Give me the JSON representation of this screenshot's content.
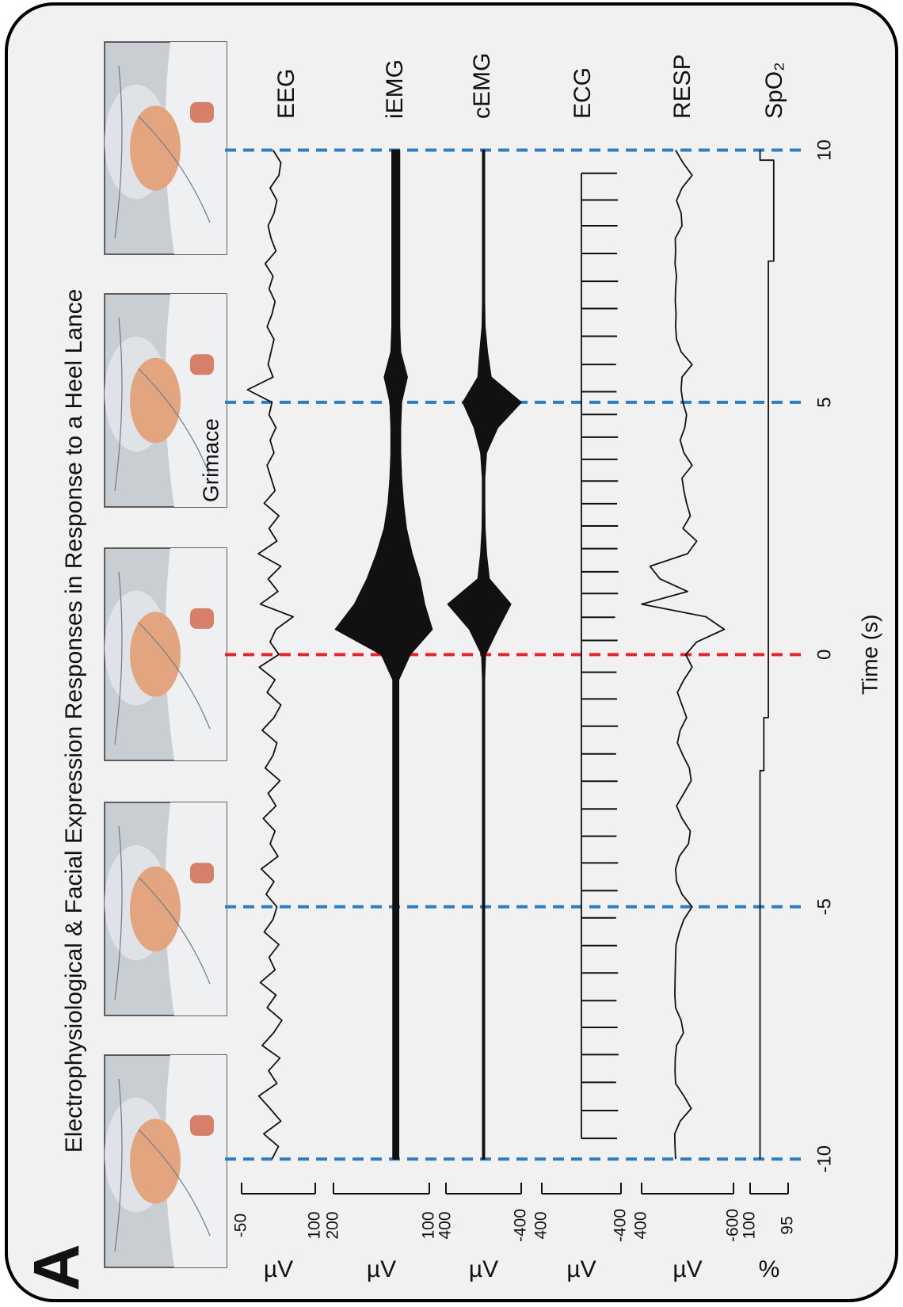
{
  "title": "Electrophysiological & Facial Expression Responses in Response to a Heel Lance",
  "panel_label": "A",
  "annotation": "Grimace",
  "time_axis": {
    "label": "Time (s)",
    "xlim": [
      -10,
      10
    ],
    "xticks": [
      -10,
      -5,
      0,
      5,
      10
    ],
    "tick_line_colors": [
      "#2f7dc1",
      "#2f7dc1",
      "#e3262c",
      "#2f7dc1",
      "#2f7dc1"
    ]
  },
  "chart_data": [
    {
      "type": "line",
      "name": "EEG",
      "unit": "µV",
      "color": "#111111",
      "ylim": [
        -50,
        100
      ],
      "yticks": [
        -50,
        100
      ],
      "x": [
        -10,
        -9.75,
        -9.5,
        -9.25,
        -9,
        -8.75,
        -8.5,
        -8.25,
        -8,
        -7.75,
        -7.5,
        -7.25,
        -7,
        -6.75,
        -6.5,
        -6.25,
        -6,
        -5.75,
        -5.5,
        -5.25,
        -5,
        -4.75,
        -4.5,
        -4.25,
        -4,
        -3.75,
        -3.5,
        -3.25,
        -3,
        -2.75,
        -2.5,
        -2.25,
        -2,
        -1.75,
        -1.5,
        -1.25,
        -1,
        -0.75,
        -0.5,
        -0.25,
        0,
        0.25,
        0.5,
        0.75,
        1,
        1.25,
        1.5,
        1.75,
        2,
        2.25,
        2.5,
        2.75,
        3,
        3.25,
        3.5,
        3.75,
        4,
        4.25,
        4.5,
        4.75,
        5,
        5.25,
        5.5,
        5.75,
        6,
        6.25,
        6.5,
        6.75,
        7,
        7.25,
        7.5,
        7.75,
        8,
        8.25,
        8.5,
        8.75,
        9,
        9.25,
        9.5,
        9.75,
        10
      ],
      "values": [
        12,
        25,
        -5,
        30,
        8,
        -15,
        22,
        5,
        28,
        -8,
        15,
        32,
        2,
        20,
        -12,
        18,
        6,
        26,
        -4,
        14,
        22,
        0,
        16,
        -10,
        24,
        8,
        18,
        -6,
        20,
        4,
        28,
        -2,
        14,
        22,
        -8,
        16,
        30,
        2,
        18,
        -14,
        26,
        8,
        20,
        55,
        -12,
        24,
        4,
        30,
        -16,
        22,
        6,
        26,
        -4,
        18,
        10,
        2,
        16,
        8,
        20,
        6,
        12,
        -38,
        14,
        4,
        10,
        16,
        2,
        12,
        18,
        6,
        14,
        -2,
        20,
        10,
        4,
        16,
        22,
        8,
        26,
        30,
        14
      ]
    },
    {
      "type": "band",
      "name": "iEMG",
      "unit": "µV",
      "color": "#111111",
      "ylim": [
        200,
        100
      ],
      "yticks": [
        200,
        100
      ],
      "x": [
        -10,
        -9.5,
        -9,
        -8.5,
        -8,
        -7.5,
        -7,
        -6.5,
        -6,
        -5.5,
        -5,
        -4.5,
        -4,
        -3.5,
        -3,
        -2.5,
        -2,
        -1.5,
        -1,
        -0.5,
        0,
        0.5,
        1,
        1.5,
        2,
        2.5,
        3,
        3.5,
        4,
        4.5,
        5,
        5.5,
        6,
        6.5,
        7,
        7.5,
        8,
        8.5,
        9,
        9.5,
        10
      ],
      "high": [
        138,
        138,
        138,
        138,
        138,
        138,
        138,
        138,
        138,
        138,
        138,
        138,
        138,
        138,
        138,
        138,
        138,
        138,
        138,
        138,
        150,
        198,
        178,
        165,
        155,
        147,
        143,
        141,
        140,
        140,
        141,
        147,
        140,
        139,
        139,
        139,
        139,
        139,
        139,
        139,
        139
      ],
      "low": [
        132,
        132,
        132,
        132,
        132,
        132,
        132,
        132,
        132,
        132,
        132,
        132,
        132,
        132,
        132,
        132,
        132,
        132,
        132,
        132,
        120,
        97,
        105,
        110,
        118,
        124,
        127,
        129,
        130,
        130,
        129,
        123,
        130,
        131,
        131,
        131,
        131,
        131,
        131,
        131,
        131
      ]
    },
    {
      "type": "band",
      "name": "cEMG",
      "unit": "µV",
      "color": "#111111",
      "ylim": [
        400,
        -400
      ],
      "yticks": [
        400,
        -400
      ],
      "x": [
        -10,
        -9.5,
        -9,
        -8.5,
        -8,
        -7.5,
        -7,
        -6.5,
        -6,
        -5.5,
        -5,
        -4.5,
        -4,
        -3.5,
        -3,
        -2.5,
        -2,
        -1.5,
        -1,
        -0.5,
        0,
        0.5,
        1,
        1.5,
        2,
        2.5,
        3,
        3.5,
        4,
        4.5,
        5,
        5.5,
        6,
        6.5,
        7,
        7.5,
        8,
        8.5,
        9,
        9.5,
        10
      ],
      "high": [
        10,
        10,
        10,
        10,
        10,
        10,
        10,
        10,
        10,
        10,
        10,
        10,
        10,
        10,
        10,
        10,
        10,
        10,
        10,
        10,
        20,
        150,
        380,
        60,
        30,
        15,
        12,
        12,
        30,
        100,
        220,
        60,
        40,
        15,
        10,
        10,
        10,
        10,
        10,
        10,
        10
      ],
      "low": [
        -10,
        -10,
        -10,
        -10,
        -10,
        -10,
        -10,
        -10,
        -10,
        -10,
        -10,
        -10,
        -10,
        -10,
        -10,
        -10,
        -10,
        -10,
        -10,
        -10,
        -20,
        -150,
        -290,
        -60,
        -30,
        -15,
        -12,
        -12,
        -30,
        -150,
        -400,
        -80,
        -40,
        -15,
        -10,
        -10,
        -10,
        -10,
        -10,
        -10,
        -10
      ]
    },
    {
      "type": "stem",
      "name": "ECG",
      "unit": "µV",
      "color": "#111111",
      "ylim": [
        400,
        -400
      ],
      "yticks": [
        400,
        -400
      ],
      "x": [
        -9.59,
        -9.04,
        -8.48,
        -7.93,
        -7.39,
        -6.86,
        -6.31,
        -5.77,
        -5.22,
        -4.68,
        -4.13,
        -3.6,
        -3.06,
        -2.51,
        -1.97,
        -1.42,
        -0.88,
        -0.35,
        0.28,
        0.74,
        1.21,
        1.64,
        2.1,
        2.55,
        2.99,
        3.44,
        3.87,
        4.31,
        4.76,
        5.21,
        5.75,
        6.31,
        6.86,
        7.4,
        7.95,
        8.5,
        9.01,
        9.54
      ],
      "values": [
        -360,
        -370,
        -350,
        -375,
        -365,
        -355,
        -370,
        -360,
        -350,
        -365,
        -370,
        -355,
        -360,
        -365,
        -350,
        -370,
        -360,
        -355,
        -365,
        -340,
        -370,
        -375,
        -365,
        -370,
        -360,
        -370,
        -365,
        -370,
        -360,
        -355,
        -350,
        -360,
        -365,
        -370,
        -360,
        -365,
        -370,
        -360
      ]
    },
    {
      "type": "line",
      "name": "RESP",
      "unit": "µV",
      "color": "#111111",
      "ylim": [
        400,
        -600
      ],
      "yticks": [
        400,
        -600
      ],
      "x": [
        -10,
        -9.75,
        -9.5,
        -9.25,
        -9,
        -8.75,
        -8.5,
        -8.25,
        -8,
        -7.75,
        -7.5,
        -7.25,
        -7,
        -6.75,
        -6.5,
        -6.25,
        -6,
        -5.75,
        -5.5,
        -5.25,
        -5,
        -4.75,
        -4.5,
        -4.25,
        -4,
        -3.75,
        -3.5,
        -3.25,
        -3,
        -2.75,
        -2.5,
        -2.25,
        -2,
        -1.75,
        -1.5,
        -1.25,
        -1,
        -0.75,
        -0.5,
        -0.25,
        0,
        0.25,
        0.5,
        0.75,
        1,
        1.25,
        1.5,
        1.75,
        2,
        2.25,
        2.5,
        2.75,
        3,
        3.25,
        3.5,
        3.75,
        4,
        4.25,
        4.5,
        4.75,
        5,
        5.25,
        5.5,
        5.75,
        6,
        6.25,
        6.5,
        6.75,
        7,
        7.25,
        7.5,
        7.75,
        8,
        8.25,
        8.5,
        8.75,
        9,
        9.25,
        9.5,
        9.75,
        10
      ],
      "values": [
        30,
        36,
        40,
        -20,
        -140,
        -60,
        30,
        36,
        34,
        20,
        -55,
        -30,
        30,
        38,
        36,
        34,
        30,
        25,
        -10,
        -60,
        -150,
        -40,
        20,
        30,
        -10,
        -110,
        -130,
        -40,
        20,
        -60,
        -140,
        -120,
        -50,
        10,
        -20,
        -90,
        -40,
        10,
        -60,
        -150,
        -80,
        -200,
        -500,
        -300,
        400,
        -100,
        200,
        309,
        -100,
        -200,
        -50,
        -130,
        -90,
        -60,
        -40,
        -150,
        -60,
        -20,
        -70,
        -90,
        -50,
        -30,
        -40,
        -150,
        -30,
        20,
        30,
        25,
        34,
        30,
        20,
        36,
        30,
        34,
        -40,
        -30,
        20,
        -40,
        -150,
        -50,
        30
      ]
    },
    {
      "type": "line",
      "name": "SpO₂",
      "unit": "%",
      "color": "#111111",
      "ylim": [
        100,
        95
      ],
      "yticks": [
        100,
        95
      ],
      "x": [
        -10,
        -2.3,
        -2.3,
        -1.25,
        -1.25,
        7.8,
        7.8,
        9.8,
        9.8,
        10
      ],
      "values": [
        98.7,
        98.7,
        98.2,
        98.2,
        97.6,
        97.6,
        96.9,
        96.9,
        98.7,
        98.7
      ]
    }
  ]
}
